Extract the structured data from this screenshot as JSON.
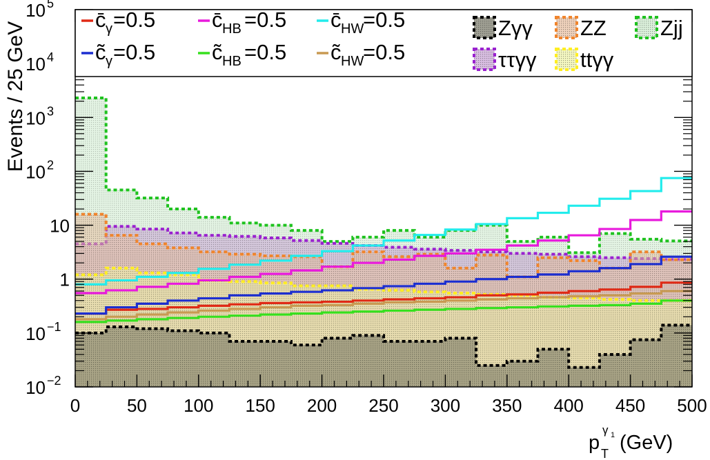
{
  "chart_data": {
    "type": "histogram",
    "ylabel": "Events / 25 GeV",
    "xlabel_main": "p",
    "xlabel_sub": "T",
    "xlabel_sup": "γ",
    "xlabel_sup_sub": "1",
    "xlabel_unit": "(GeV)",
    "xlim": [
      0,
      500
    ],
    "ylim": [
      0.01,
      100000
    ],
    "y_scale": "log",
    "bin_width": 25,
    "x_ticks": [
      "0",
      "50",
      "100",
      "150",
      "200",
      "250",
      "300",
      "350",
      "400",
      "450",
      "500"
    ],
    "y_ticks": [
      {
        "base": "10",
        "exp": "−2",
        "value": 0.01
      },
      {
        "base": "10",
        "exp": "−1",
        "value": 0.1
      },
      {
        "base": "1",
        "exp": "",
        "value": 1
      },
      {
        "base": "10",
        "exp": "",
        "value": 10
      },
      {
        "base": "10",
        "exp": "2",
        "value": 100
      },
      {
        "base": "10",
        "exp": "3",
        "value": 1000
      },
      {
        "base": "10",
        "exp": "4",
        "value": 10000
      },
      {
        "base": "10",
        "exp": "5",
        "value": 100000
      }
    ],
    "backgrounds": [
      {
        "name": "Zjj",
        "color": "#1fc21f",
        "fill": "#cdebcd",
        "values": [
          2300,
          45,
          32,
          20,
          14,
          11,
          10,
          8,
          5,
          6,
          8,
          6,
          8,
          10,
          5,
          6,
          3.1,
          7,
          5.5,
          5.1
        ]
      },
      {
        "name": "ττγγ",
        "color": "#9a22cf",
        "fill": "#c9a4d6",
        "values": [
          4.5,
          9.5,
          8.5,
          7.2,
          6.5,
          6.2,
          5.8,
          5.2,
          4.6,
          4.2,
          3.9,
          3.6,
          3.4,
          3.2,
          3.0,
          2.9,
          2.6,
          2.5,
          2.4,
          2.3
        ]
      },
      {
        "name": "ZZ",
        "color": "#f0852d",
        "fill": "#e8bfa0",
        "values": [
          16,
          6.5,
          4.5,
          3.8,
          3.2,
          2.9,
          2.7,
          2.6,
          1.7,
          3.2,
          2.6,
          2.9,
          1.6,
          2.8,
          1.1,
          2.5,
          2.2,
          1.6,
          3.2,
          2.3
        ]
      },
      {
        "name": "ttγγ",
        "color": "#ffee22",
        "fill": "#eff3a8",
        "values": [
          1.2,
          1.6,
          1.3,
          1.2,
          0.95,
          0.9,
          0.85,
          0.75,
          0.75,
          0.65,
          0.62,
          0.58,
          0.55,
          0.52,
          0.5,
          0.46,
          0.45,
          0.42,
          0.4,
          0.4
        ]
      },
      {
        "name": "Zγγ",
        "color": "#000000",
        "fill": "#777766",
        "values": [
          0.1,
          0.13,
          0.12,
          0.11,
          0.1,
          0.07,
          0.07,
          0.06,
          0.08,
          0.09,
          0.07,
          0.07,
          0.08,
          0.025,
          0.03,
          0.05,
          0.023,
          0.04,
          0.075,
          0.14
        ]
      }
    ],
    "signals": [
      {
        "name": "c̄γ=0.5",
        "color": "#e02a16",
        "legend_letter": "c̄",
        "legend_sub": "γ",
        "legend_value": "=0.5",
        "values": [
          0.23,
          0.27,
          0.28,
          0.3,
          0.32,
          0.34,
          0.36,
          0.37,
          0.38,
          0.4,
          0.42,
          0.44,
          0.46,
          0.5,
          0.52,
          0.56,
          0.6,
          0.64,
          0.72,
          0.86
        ]
      },
      {
        "name": "c̄HB=0.5",
        "color": "#e81adc",
        "legend_letter": "c̄",
        "legend_sub": "HB",
        "legend_value": "=0.5",
        "values": [
          0.55,
          0.62,
          0.72,
          0.82,
          0.95,
          1.1,
          1.25,
          1.45,
          1.7,
          2.0,
          2.3,
          2.7,
          3.0,
          3.5,
          4.2,
          5.2,
          6.5,
          8.5,
          12.5,
          18
        ]
      },
      {
        "name": "c̄HW=0.5",
        "color": "#22ecec",
        "legend_letter": "c̄",
        "legend_sub": "HW",
        "legend_value": "=0.5",
        "values": [
          0.8,
          0.95,
          1.1,
          1.3,
          1.55,
          1.85,
          2.2,
          2.7,
          3.3,
          4.2,
          5.2,
          6.6,
          8.3,
          10.5,
          13.5,
          17,
          23,
          31,
          43,
          75
        ]
      },
      {
        "name": "c̃γ=0.5",
        "color": "#1c2ed0",
        "legend_letter": "c̃",
        "legend_sub": "γ",
        "legend_value": "=0.5",
        "values": [
          0.23,
          0.3,
          0.35,
          0.4,
          0.44,
          0.5,
          0.54,
          0.58,
          0.62,
          0.68,
          0.74,
          0.82,
          0.9,
          1.0,
          1.1,
          1.22,
          1.4,
          1.6,
          1.9,
          2.6
        ]
      },
      {
        "name": "c̃HB=0.5",
        "color": "#36e01e",
        "legend_letter": "c̃",
        "legend_sub": "HB",
        "legend_value": "=0.5",
        "values": [
          0.16,
          0.17,
          0.18,
          0.19,
          0.2,
          0.21,
          0.22,
          0.23,
          0.24,
          0.25,
          0.26,
          0.27,
          0.28,
          0.29,
          0.3,
          0.31,
          0.32,
          0.33,
          0.35,
          0.4
        ]
      },
      {
        "name": "c̃HW=0.5",
        "color": "#c89a52",
        "legend_letter": "c̃",
        "legend_sub": "HW",
        "legend_value": "=0.5",
        "values": [
          0.18,
          0.2,
          0.22,
          0.24,
          0.26,
          0.28,
          0.3,
          0.32,
          0.33,
          0.35,
          0.37,
          0.38,
          0.4,
          0.42,
          0.44,
          0.46,
          0.48,
          0.5,
          0.54,
          0.6
        ]
      }
    ],
    "legend": {
      "placement": "top",
      "signal_order": [
        0,
        1,
        2,
        3,
        4,
        5
      ],
      "background_order": [
        "Zγγ",
        "ZZ",
        "Zjj",
        "ττγγ",
        "ttγγ"
      ]
    }
  }
}
